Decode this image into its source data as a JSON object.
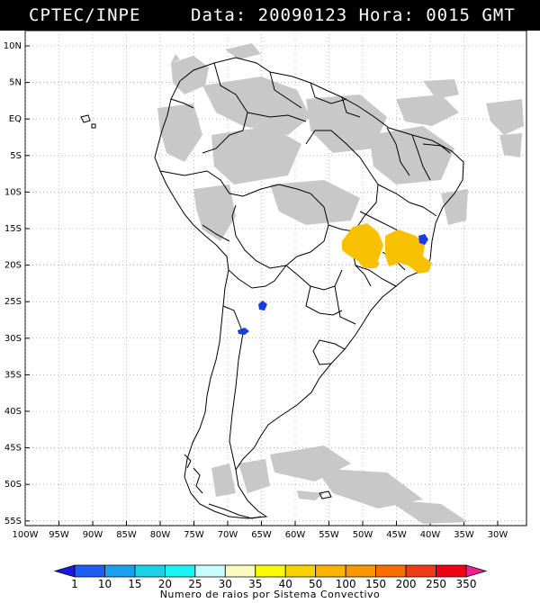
{
  "header": {
    "source": "CPTEC/INPE",
    "datetime": "Data: 20090123 Hora: 0015 GMT"
  },
  "map": {
    "lat_labels": [
      "10N",
      "5N",
      "EQ",
      "5S",
      "10S",
      "15S",
      "20S",
      "25S",
      "30S",
      "35S",
      "40S",
      "45S",
      "50S",
      "55S"
    ],
    "lon_labels": [
      "100W",
      "95W",
      "90W",
      "85W",
      "80W",
      "75W",
      "70W",
      "65W",
      "60W",
      "55W",
      "50W",
      "45W",
      "40W",
      "35W",
      "30W"
    ],
    "grid": "dotted",
    "cloud_color": "#c8c8c8",
    "cell_colors": {
      "blue": "#1a3ce0",
      "yellow": "#f7c000"
    }
  },
  "colorbar": {
    "labels": [
      "1",
      "10",
      "15",
      "20",
      "25",
      "30",
      "35",
      "40",
      "50",
      "100",
      "150",
      "200",
      "250",
      "350"
    ],
    "colors": [
      "#1a18e6",
      "#1f5cf0",
      "#1aa0f0",
      "#18d2e8",
      "#18f4f4",
      "#c8fbfb",
      "#fafac0",
      "#fafa00",
      "#fad200",
      "#fab400",
      "#fa9600",
      "#fa6e00",
      "#f03c14",
      "#f00014",
      "#f01e96"
    ],
    "title": "Numero de raios por Sistema Convectivo"
  }
}
